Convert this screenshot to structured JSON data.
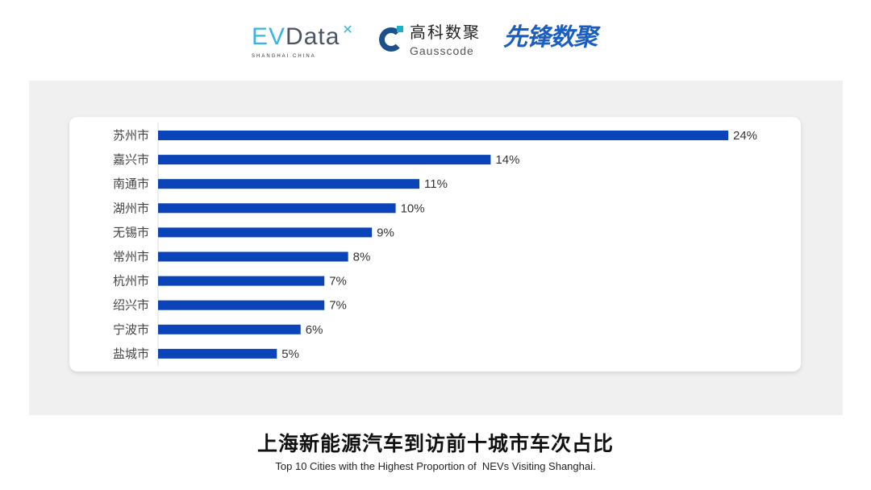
{
  "logos": {
    "evdata": {
      "ev": "EV",
      "rest": "Data",
      "sub": "SHANGHAI CHINA"
    },
    "gausscode": {
      "cn": "高科数聚",
      "en": "Gausscode"
    },
    "xianfeng": "先锋数聚"
  },
  "colors": {
    "bar": "#0b44b8",
    "panel": "#f0f0f0",
    "card": "#ffffff",
    "label": "#444444"
  },
  "chart_data": {
    "type": "bar",
    "orientation": "horizontal",
    "title": "上海新能源汽车到访前十城市车次占比",
    "subtitle": "Top 10 Cities with the Highest Proportion of  NEVs Visiting Shanghai.",
    "categories": [
      "苏州市",
      "嘉兴市",
      "南通市",
      "湖州市",
      "无锡市",
      "常州市",
      "杭州市",
      "绍兴市",
      "宁波市",
      "盐城市"
    ],
    "values": [
      24,
      14,
      11,
      10,
      9,
      8,
      7,
      7,
      6,
      5
    ],
    "data_labels": [
      "24%",
      "14%",
      "11%",
      "10%",
      "9%",
      "8%",
      "7%",
      "7%",
      "6%",
      "5%"
    ],
    "unit": "%",
    "xlim": [
      0,
      24
    ],
    "grid": false,
    "legend": "none"
  }
}
